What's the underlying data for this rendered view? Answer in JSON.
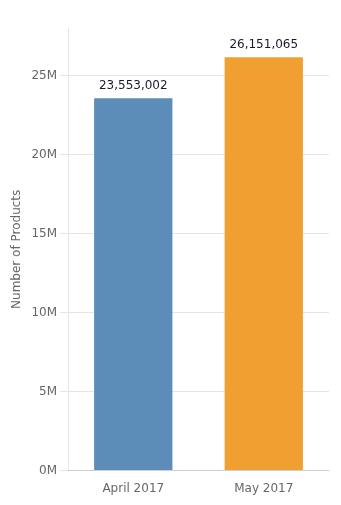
{
  "chart_data": {
    "type": "bar",
    "categories": [
      "April 2017",
      "May 2017"
    ],
    "values": [
      23553002,
      26151065
    ],
    "value_labels": [
      "23,553,002",
      "26,151,065"
    ],
    "data_labels": true,
    "colors": [
      "#5b8db8",
      "#f0a030"
    ],
    "y_label": "Number of Products",
    "ylim": [
      0,
      28000000
    ],
    "yticks": [
      {
        "value": 0,
        "label": "0M"
      },
      {
        "value": 5000000,
        "label": "5M"
      },
      {
        "value": 10000000,
        "label": "10M"
      },
      {
        "value": 15000000,
        "label": "15M"
      },
      {
        "value": 20000000,
        "label": "20M"
      },
      {
        "value": 25000000,
        "label": "25M"
      }
    ],
    "grid": true
  }
}
